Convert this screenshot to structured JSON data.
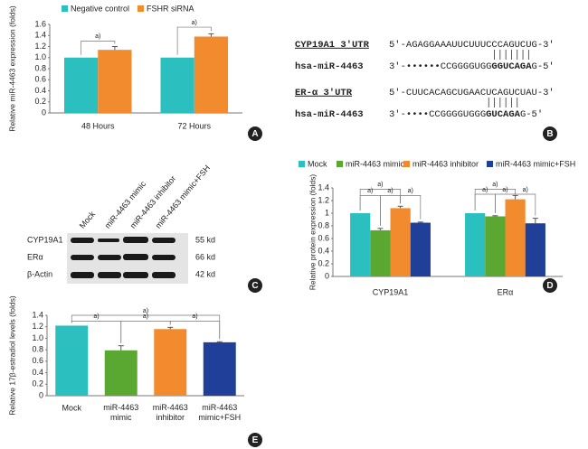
{
  "chart_data": [
    {
      "type": "bar",
      "panel": "A",
      "y_label": "Relative miR-4463 expression (folds)",
      "categories": [
        "48 Hours",
        "72 Hours"
      ],
      "series": [
        {
          "name": "Negative control",
          "color": "#2bbfbf",
          "values": [
            1.0,
            1.0
          ],
          "errors": [
            0,
            0
          ]
        },
        {
          "name": "FSHR siRNA",
          "color": "#f28a2e",
          "values": [
            1.14,
            1.38
          ],
          "errors": [
            0.06,
            0.05
          ]
        }
      ],
      "ylim": [
        0,
        1.6
      ],
      "yticks": [
        0,
        0.2,
        0.4,
        0.6,
        0.8,
        {
          "value": 1,
          "label": "1.0"
        },
        1.2,
        1.4,
        1.6
      ],
      "annotation": "a)"
    },
    {
      "type": "bar",
      "panel": "D",
      "y_label": "Relative protein expression (folds)",
      "categories": [
        "CYP19A1",
        "ERα"
      ],
      "series": [
        {
          "name": "Mock",
          "color": "#2bbfbf",
          "values": [
            1.0,
            1.0
          ],
          "errors": [
            0,
            0
          ]
        },
        {
          "name": "miR-4463 mimic",
          "color": "#5aa832",
          "values": [
            0.73,
            0.95
          ],
          "errors": [
            0.03,
            0.01
          ]
        },
        {
          "name": "miR-4463 inhibitor",
          "color": "#f28a2e",
          "values": [
            1.08,
            1.22
          ],
          "errors": [
            0.03,
            0.06
          ]
        },
        {
          "name": "miR-4463 mimic+FSH",
          "color": "#1f3f99",
          "values": [
            0.85,
            0.84
          ],
          "errors": [
            0.01,
            0.08
          ]
        }
      ],
      "ylim": [
        0,
        1.4
      ],
      "yticks": [
        0,
        0.2,
        0.4,
        0.6,
        0.8,
        1,
        1.2,
        1.4
      ],
      "annotation": "a)"
    },
    {
      "type": "bar",
      "panel": "E",
      "y_label": "Relative 17β-estradiol levels (folds)",
      "categories": [
        "Mock",
        "miR-4463 mimic",
        "miR-4463 inhibitor",
        "miR-4463 mimic+FSH"
      ],
      "values": [
        1.22,
        0.79,
        1.16,
        0.93
      ],
      "errors": [
        0,
        0.08,
        0.03,
        0.01
      ],
      "colors": [
        "#2bbfbf",
        "#5aa832",
        "#f28a2e",
        "#1f3f99"
      ],
      "ylim": [
        0,
        1.4
      ],
      "yticks": [
        0,
        0.2,
        0.4,
        0.6,
        0.8,
        {
          "value": 1,
          "label": "1.0"
        },
        1.2,
        1.4
      ],
      "annotation": "a)"
    }
  ],
  "sequence_panel": {
    "panel": "B",
    "entries": [
      {
        "name": "CYP19A1 3′UTR",
        "utr": "5′-AGAGGAAAUUCUUUCCCAGUCUG-3′",
        "mirna": "hsa-miR-4463",
        "mirna_pre": "3′-••••••CCGGGGUGG",
        "mirna_bold": "GGUCAGA",
        "mirna_post": "G-5′"
      },
      {
        "name": "ER-α 3′UTR",
        "utr": "5′-CUUCACAGCUGAACUCAGUCUAU-3′",
        "mirna": "hsa-miR-4463",
        "mirna_pre": "3′-••••CCGGGGUGGG",
        "mirna_bold": "GUCAGA",
        "mirna_post": "G-5′"
      }
    ]
  },
  "blot_panel": {
    "panel": "C",
    "lanes": [
      "Mock",
      "miR-4463 mimic",
      "miR-4463 inhibitor",
      "miR-4463 mimic+FSH"
    ],
    "rows": [
      {
        "protein": "CYP19A1",
        "size": "55 kd"
      },
      {
        "protein": "ERα",
        "size": "66 kd"
      },
      {
        "protein": "β-Actin",
        "size": "42 kd"
      }
    ]
  }
}
